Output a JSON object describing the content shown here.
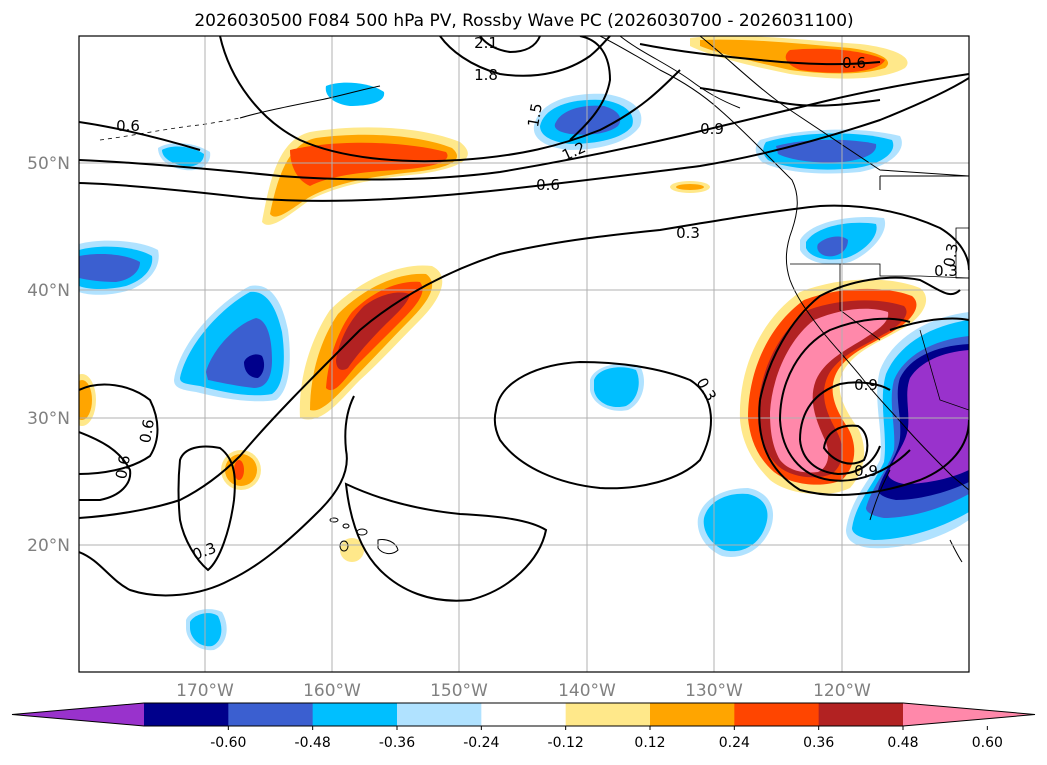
{
  "title": "2026030500 F084 500 hPa PV, Rossby Wave PC (2026030700 - 2026031100)",
  "map": {
    "lat_labels": [
      "50°N",
      "40°N",
      "30°N",
      "20°N"
    ],
    "lon_labels": [
      "170°W",
      "160°W",
      "150°W",
      "140°W",
      "130°W",
      "120°W"
    ],
    "axis_label_color": "#808080"
  },
  "contours": {
    "labels": [
      "2.1",
      "1.8",
      "1.5",
      "1.2",
      "0.9",
      "0.6",
      "0.6",
      "0.6",
      "0.3",
      "0.3",
      "0.3",
      "0.3",
      "0.6",
      "0.6",
      "0.9",
      "0.9",
      "0.3"
    ]
  },
  "colorbar": {
    "tick_labels": [
      "-0.60",
      "-0.48",
      "-0.36",
      "-0.24",
      "-0.12",
      "0.12",
      "0.24",
      "0.36",
      "0.48",
      "0.60"
    ],
    "colors": [
      "#9932cc",
      "#00008b",
      "#3b5fd0",
      "#00bfff",
      "#b0e2ff",
      "#ffffff",
      "#ffe88a",
      "#ffa500",
      "#ff4500",
      "#b22222",
      "#ff88aa"
    ],
    "extend": "both"
  }
}
